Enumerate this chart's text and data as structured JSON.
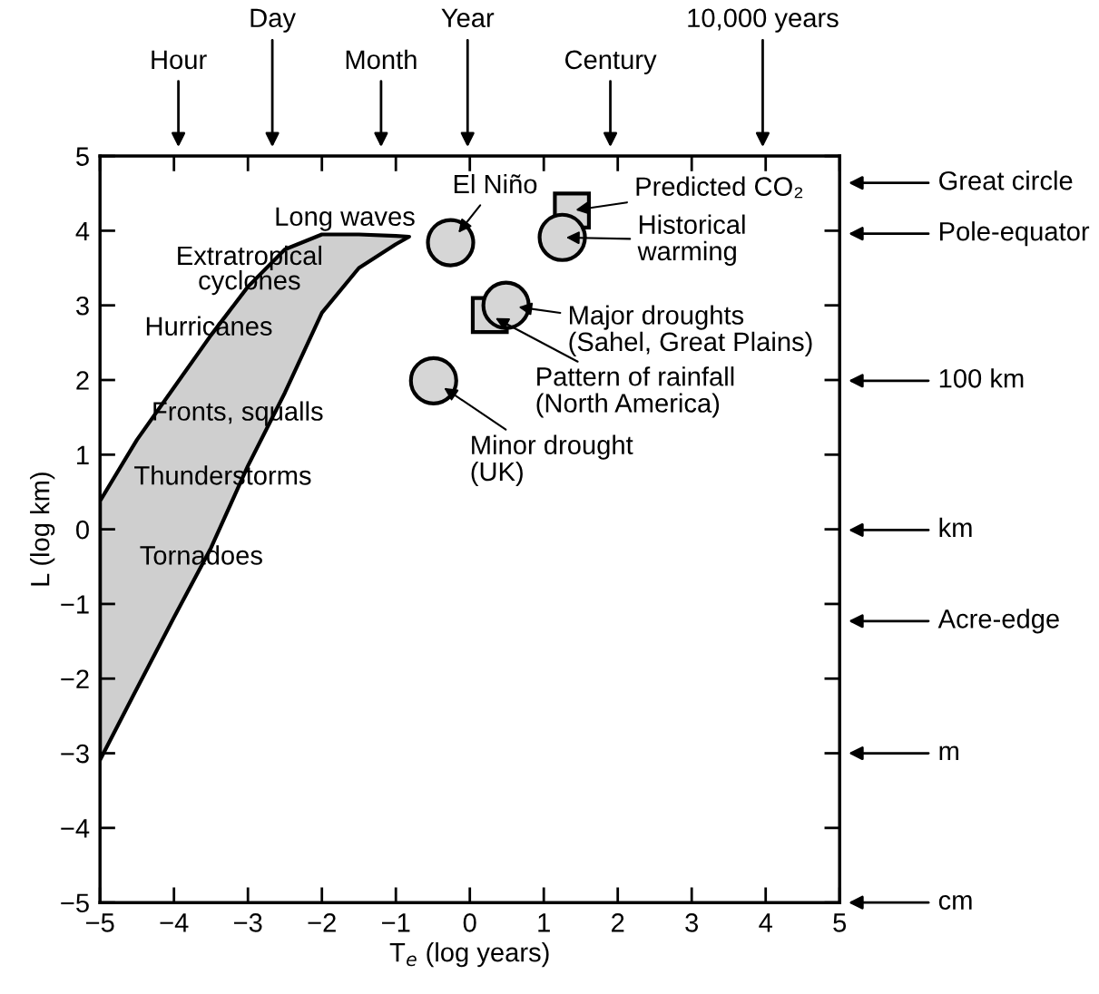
{
  "chart_data": {
    "type": "scatter",
    "xlabel": "T$_{e}$ (log years)",
    "ylabel": "L (log km)",
    "xlim": [
      -5,
      5
    ],
    "xticks": [
      -5,
      -4,
      -3,
      -2,
      -1,
      0,
      1,
      2,
      3,
      4,
      5
    ],
    "ylim": [
      -5,
      5
    ],
    "yticks": [
      -5,
      -4,
      -3,
      -2,
      -1,
      0,
      1,
      2,
      3,
      4,
      5
    ],
    "grid": false,
    "series": [
      {
        "type": "area",
        "color": "#cfcfcf",
        "x": [
          -5,
          -4.5,
          -4,
          -3.5,
          -3,
          -2.5,
          -2,
          -1.5,
          -1,
          -0.82
        ],
        "values": [
          null,
          null,
          null,
          null,
          null,
          null,
          null,
          null,
          null,
          null
        ],
        "upper": [
          0.38,
          1.2,
          1.9,
          2.6,
          3.25,
          3.75,
          3.95,
          3.95,
          3.93,
          3.92
        ],
        "lower": [
          -3.09,
          -2.13,
          -1.18,
          -0.25,
          0.85,
          1.83,
          2.9,
          3.5,
          3.82,
          3.92
        ]
      },
      {
        "marker": "circle",
        "color": "#d6d6d6",
        "x": [
          -0.26,
          1.25,
          0.49,
          -0.49
        ],
        "values": [
          3.84,
          3.91,
          3.0,
          1.99
        ]
      },
      {
        "marker": "square",
        "color": "#d6d6d6",
        "x": [
          1.38,
          0.27
        ],
        "values": [
          4.27,
          2.87
        ]
      }
    ],
    "annotations": [
      "Long waves",
      "Extratropical\ncyclones",
      "Hurricanes",
      "Fronts, squalls",
      "Thunderstorms",
      "Tornadoes",
      {
        "text": "El Niño",
        "x": -0.26,
        "y": 3.84
      },
      {
        "text": "Predicted CO₂",
        "x": 1.38,
        "y": 4.27
      },
      {
        "text": "Historical\nwarming",
        "x": 1.25,
        "y": 3.91
      },
      {
        "text": "Major droughts\n(Sahel, Great Plains)",
        "x": 0.49,
        "y": 3.0
      },
      {
        "text": "Pattern of rainfall\n(North America)",
        "x": 0.27,
        "y": 2.87
      },
      {
        "text": "Minor drought\n(UK)",
        "x": -0.49,
        "y": 1.99
      },
      "Hour",
      "Day",
      "Month",
      "Year",
      "Century",
      "10,000 years",
      "Great circle",
      "Pole-equator",
      "100 km",
      "km",
      "Acre-edge",
      "m",
      "cm"
    ]
  }
}
